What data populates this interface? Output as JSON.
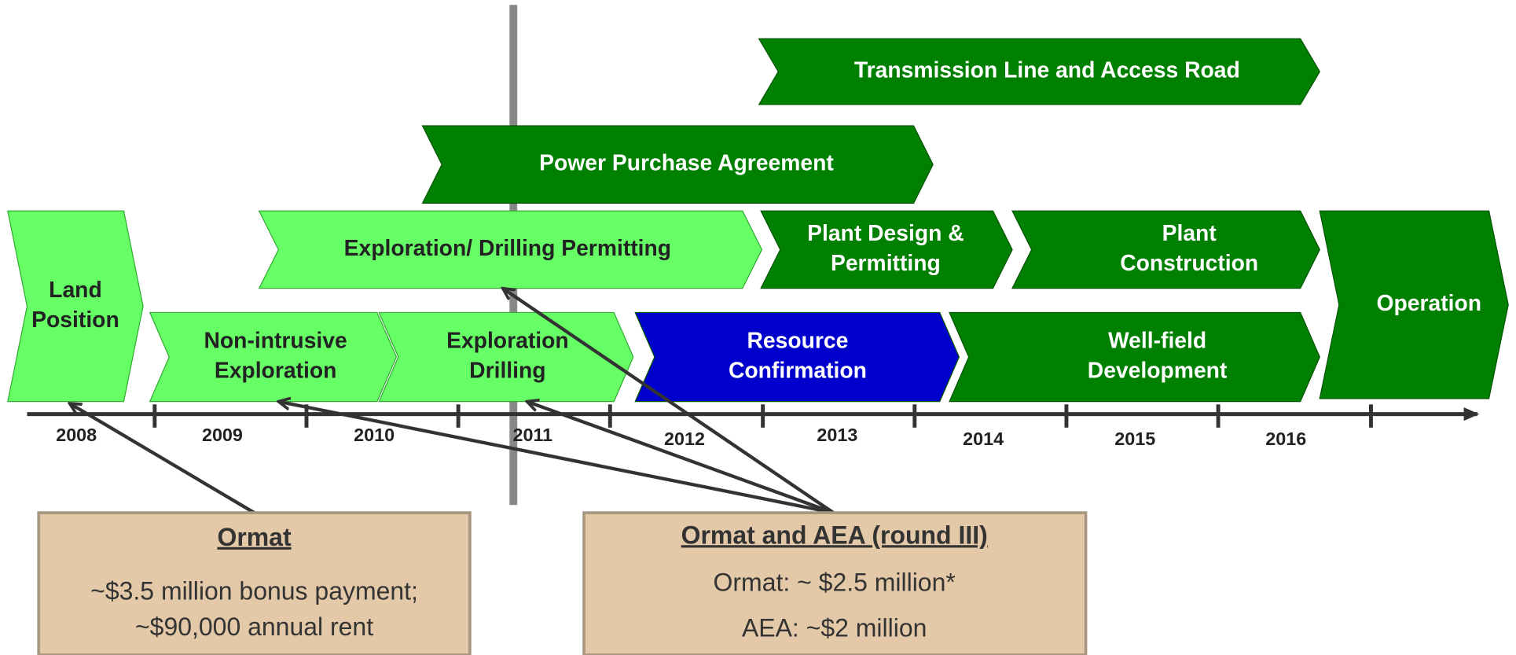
{
  "phases": [
    {
      "label": [
        "Land",
        "Position"
      ]
    },
    {
      "label": [
        "Non-intrusive",
        "Exploration"
      ]
    },
    {
      "label": [
        "Exploration",
        "Drilling"
      ]
    },
    {
      "label": [
        "Resource",
        "Confirmation"
      ]
    },
    {
      "label": [
        "Well-field",
        "Development"
      ]
    },
    {
      "label": [
        "Exploration/ Drilling Permitting"
      ]
    },
    {
      "label": [
        "Plant Design &",
        "Permitting"
      ]
    },
    {
      "label": [
        "Plant",
        "Construction"
      ]
    },
    {
      "label": [
        "Operation"
      ]
    },
    {
      "label": [
        "Power Purchase Agreement"
      ]
    },
    {
      "label": [
        "Transmission Line and Access Road"
      ]
    }
  ],
  "years": [
    "2008",
    "2009",
    "2010",
    "2011",
    "2012",
    "2013",
    "2014",
    "2015",
    "2016"
  ],
  "boxes": [
    {
      "title": "Ormat",
      "lines": [
        "~$3.5 million bonus payment;",
        "~$90,000 annual rent"
      ]
    },
    {
      "title": "Ormat and AEA (round III)",
      "lines": [
        "Ormat: ~ $2.5 million*",
        "AEA: ~$2 million"
      ]
    }
  ]
}
